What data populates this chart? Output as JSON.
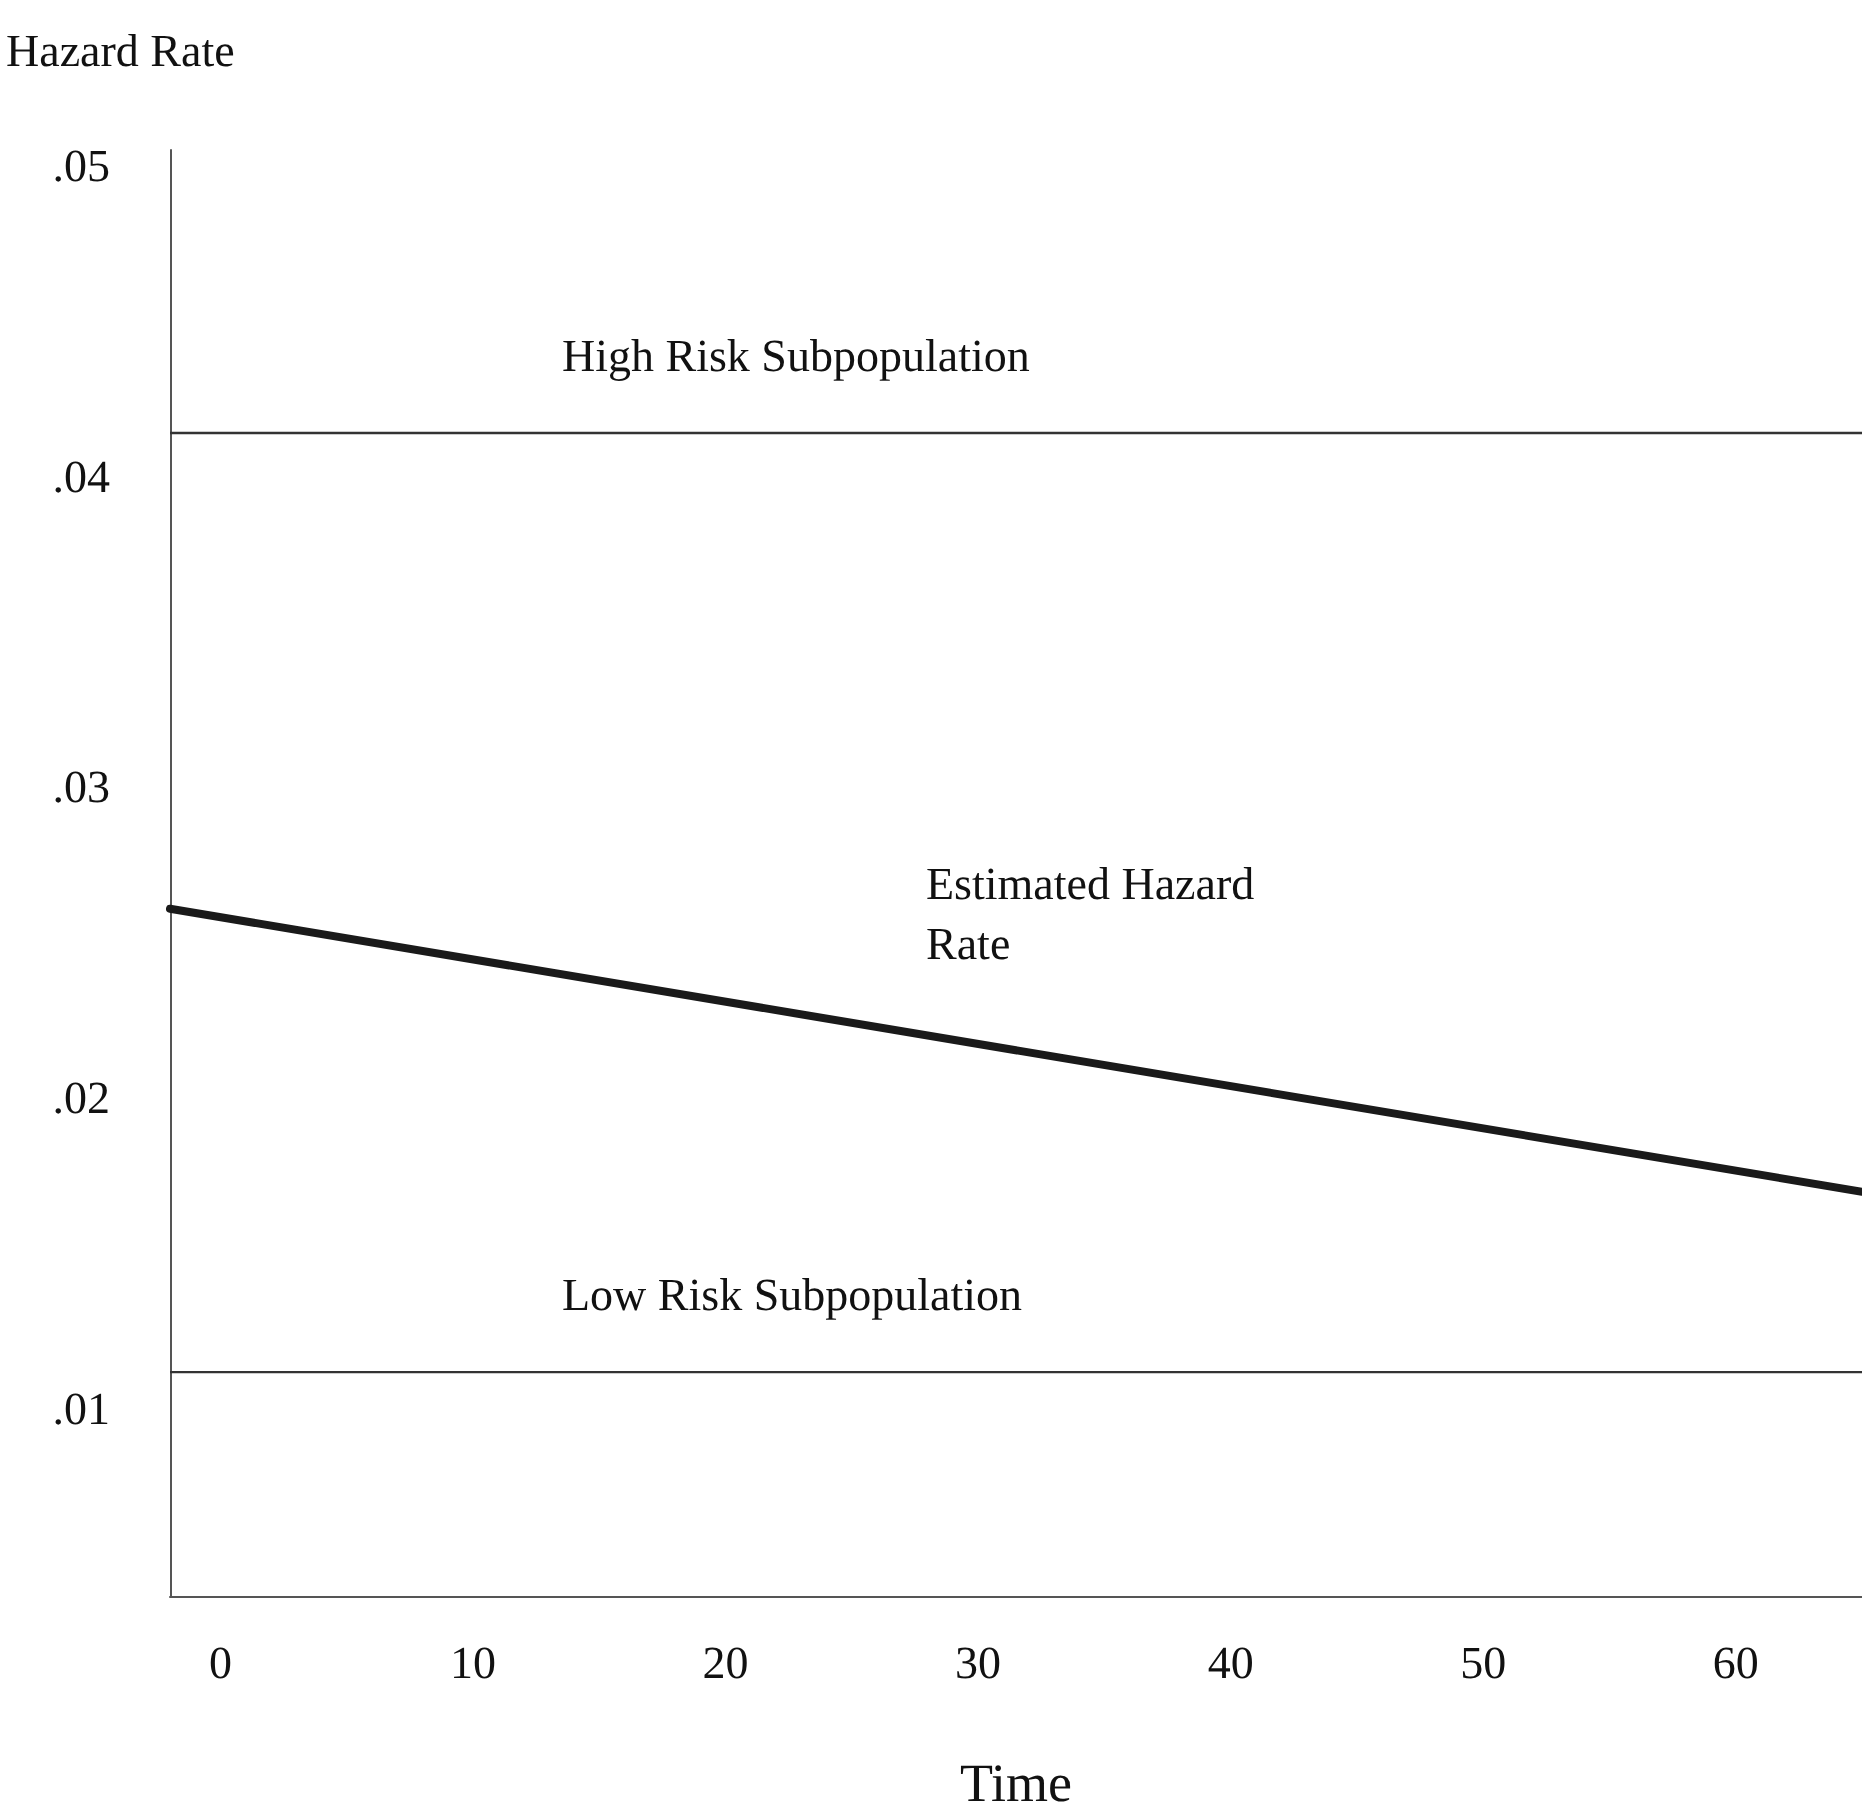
{
  "chart_data": {
    "type": "line",
    "ylabel": "Hazard Rate",
    "xlabel": "Time",
    "xlim": [
      -2,
      65
    ],
    "xticks": [
      0,
      10,
      20,
      30,
      40,
      50,
      60
    ],
    "ylim": [
      0.004,
      0.0505
    ],
    "yticks": [
      {
        "value": 0.01,
        "label": ".01"
      },
      {
        "value": 0.02,
        "label": ".02"
      },
      {
        "value": 0.03,
        "label": ".03"
      },
      {
        "value": 0.04,
        "label": ".04"
      },
      {
        "value": 0.05,
        "label": ".05"
      }
    ],
    "series": [
      {
        "name": "Estimated Hazard Rate",
        "color": "#1a1a1a",
        "x": [
          -2,
          65
        ],
        "values": [
          0.0261,
          0.017
        ]
      }
    ],
    "ref_lines": [
      {
        "axis": "y",
        "value": 0.0414,
        "label": "High Risk Subpopulation",
        "color": "#333333"
      },
      {
        "axis": "y",
        "value": 0.0112,
        "label": "Low Risk Subpopulation",
        "color": "#333333"
      }
    ],
    "grid": false,
    "legend": false,
    "marker": "none",
    "line_style": "solid"
  }
}
